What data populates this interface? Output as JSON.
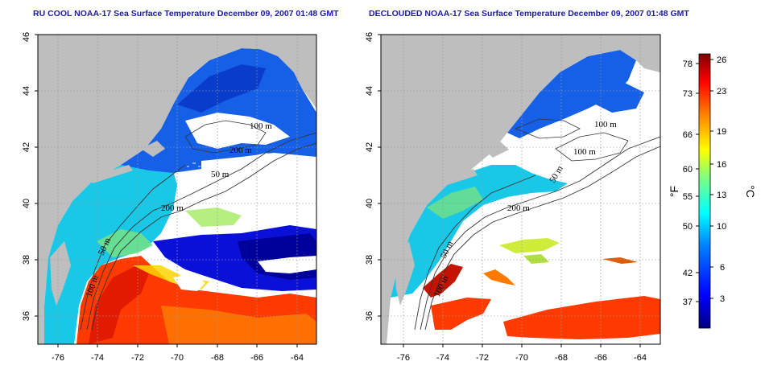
{
  "panels": [
    {
      "title": "RU COOL NOAA-17 Sea Surface Temperature December 09, 2007 01:48 GMT",
      "contour_labels": [
        "50 m",
        "100 m",
        "200 m",
        "100 m",
        "200 m",
        "50 m"
      ]
    },
    {
      "title": "DECLOUDED NOAA-17 Sea Surface Temperature December 09, 2007 01:48 GMT",
      "contour_labels": [
        "100 m",
        "100 m",
        "50 m",
        "200 m",
        "50 m",
        "100 m"
      ]
    }
  ],
  "axes": {
    "lat_ticks": [
      "36",
      "38",
      "40",
      "42",
      "44",
      "46"
    ],
    "lon_ticks": [
      "-76",
      "-74",
      "-72",
      "-70",
      "-68",
      "-66",
      "-64"
    ],
    "lat_range": [
      35,
      46
    ],
    "lon_range": [
      -77,
      -63
    ]
  },
  "colorbar": {
    "fahrenheit_unit": "°F",
    "celsius_unit": "°C",
    "fahrenheit_ticks": [
      "78",
      "73",
      "66",
      "60",
      "55",
      "50",
      "42",
      "37"
    ],
    "celsius_ticks": [
      "26",
      "23",
      "19",
      "16",
      "13",
      "10",
      "6",
      "3"
    ],
    "range_c": [
      0,
      27
    ],
    "colors": [
      "#00007f",
      "#0000ff",
      "#0080ff",
      "#00ffff",
      "#80ff80",
      "#ffff00",
      "#ff8000",
      "#ff0000",
      "#7f0000"
    ]
  },
  "colors": {
    "land": "#bebebe",
    "cloud": "#ffffff",
    "title": "#1a1aa6",
    "grid": "#9a9a9a"
  }
}
